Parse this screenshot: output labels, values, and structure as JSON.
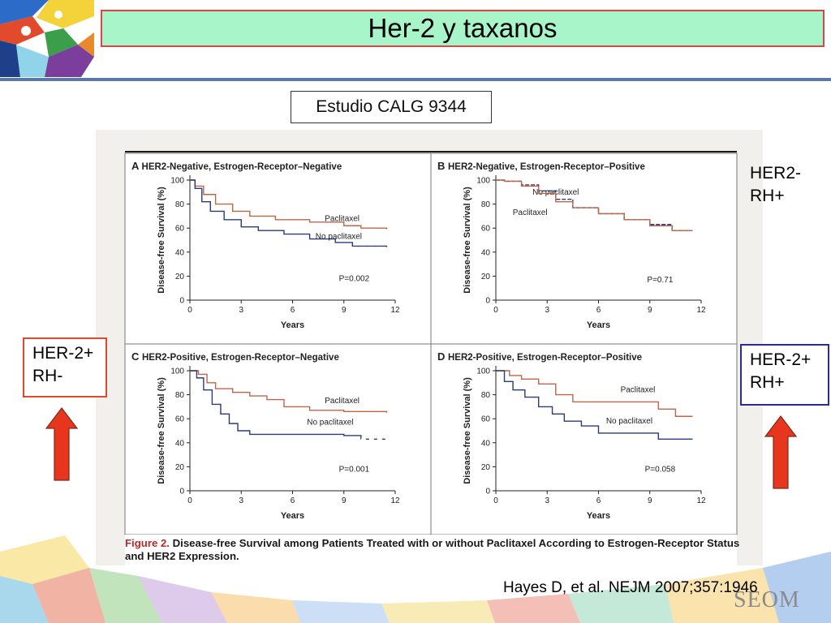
{
  "slide": {
    "title": "Her-2 y taxanos",
    "study_label": "Estudio CALG 9344",
    "citation": "Hayes D, et al. NEJM 2007;357:1946",
    "watermark": "SEOM",
    "side_labels": {
      "her2neg_rhpos": [
        "HER2-",
        "RH+"
      ],
      "her2pos_rhneg": [
        "HER-2+",
        "RH-"
      ],
      "her2pos_rhpos": [
        "HER-2+",
        "RH+"
      ]
    },
    "figure_caption": {
      "label": "Figure 2.",
      "text": "Disease-free Survival among Patients Treated with or without Paclitaxel According to Estrogen-Receptor Status and HER2 Expression."
    },
    "colors": {
      "title_bg": "#a7f5c8",
      "title_border": "#d8464a",
      "arrow": "#e8361e",
      "paclitaxel_line": "#c0654a",
      "no_paclitaxel_line": "#2a3b7a"
    }
  },
  "chart_data": [
    {
      "type": "line",
      "panel_letter": "A",
      "title": "HER2-Negative, Estrogen-Receptor–Negative",
      "xlabel": "Years",
      "ylabel": "Disease-free Survival (%)",
      "xlim": [
        0,
        12
      ],
      "ylim": [
        0,
        100
      ],
      "xticks": [
        0,
        3,
        6,
        9,
        12
      ],
      "yticks": [
        0,
        20,
        40,
        60,
        80,
        100
      ],
      "p_value": "P=0.002",
      "series": [
        {
          "name": "Paclitaxel",
          "x": [
            0,
            0.3,
            0.8,
            1.5,
            2.5,
            3.5,
            5,
            7,
            9,
            10,
            11.5
          ],
          "y": [
            100,
            95,
            88,
            80,
            74,
            70,
            67,
            65,
            62,
            60,
            59
          ]
        },
        {
          "name": "No paclitaxel",
          "x": [
            0,
            0.3,
            0.7,
            1.2,
            2,
            3,
            4,
            5.5,
            7,
            8.5,
            9.5,
            11.5
          ],
          "y": [
            100,
            93,
            82,
            74,
            67,
            61,
            58,
            55,
            51,
            48,
            45,
            44
          ]
        }
      ]
    },
    {
      "type": "line",
      "panel_letter": "B",
      "title": "HER2-Negative, Estrogen-Receptor–Positive",
      "xlabel": "Years",
      "ylabel": "Disease-free Survival (%)",
      "xlim": [
        0,
        12
      ],
      "ylim": [
        0,
        100
      ],
      "xticks": [
        0,
        3,
        6,
        9,
        12
      ],
      "yticks": [
        0,
        20,
        40,
        60,
        80,
        100
      ],
      "p_value": "P=0.71",
      "series": [
        {
          "name": "No paclitaxel",
          "x": [
            0,
            0.5,
            1.5,
            2.5,
            3.5,
            4.5,
            6,
            7.5,
            9,
            10.3,
            11.5
          ],
          "y": [
            100,
            99,
            96,
            91,
            84,
            77,
            72,
            67,
            63,
            58,
            58
          ]
        },
        {
          "name": "Paclitaxel",
          "x": [
            0,
            0.5,
            1.5,
            2.5,
            3.5,
            4.5,
            6,
            7.5,
            9,
            10.3,
            11.5
          ],
          "y": [
            100,
            99,
            95,
            89,
            82,
            77,
            72,
            67,
            62,
            58,
            58
          ]
        }
      ]
    },
    {
      "type": "line",
      "panel_letter": "C",
      "title": "HER2-Positive, Estrogen-Receptor–Negative",
      "xlabel": "Years",
      "ylabel": "Disease-free Survival (%)",
      "xlim": [
        0,
        12
      ],
      "ylim": [
        0,
        100
      ],
      "xticks": [
        0,
        3,
        6,
        9,
        12
      ],
      "yticks": [
        0,
        20,
        40,
        60,
        80,
        100
      ],
      "p_value": "P=0.001",
      "series": [
        {
          "name": "Paclitaxel",
          "x": [
            0,
            0.5,
            1,
            1.5,
            2.5,
            3.5,
            4.5,
            5.5,
            7,
            9,
            11.5
          ],
          "y": [
            100,
            97,
            90,
            85,
            82,
            79,
            76,
            70,
            67,
            66,
            65
          ]
        },
        {
          "name": "No paclitaxel",
          "x": [
            0,
            0.4,
            0.8,
            1.3,
            1.8,
            2.3,
            2.8,
            3.5,
            5,
            7,
            9,
            10,
            11.5
          ],
          "y": [
            100,
            94,
            84,
            72,
            64,
            56,
            50,
            47,
            47,
            47,
            46,
            43,
            43
          ]
        }
      ]
    },
    {
      "type": "line",
      "panel_letter": "D",
      "title": "HER2-Positive, Estrogen-Receptor–Positive",
      "xlabel": "Years",
      "ylabel": "Disease-free Survival (%)",
      "xlim": [
        0,
        12
      ],
      "ylim": [
        0,
        100
      ],
      "xticks": [
        0,
        3,
        6,
        9,
        12
      ],
      "yticks": [
        0,
        20,
        40,
        60,
        80,
        100
      ],
      "p_value": "P=0.058",
      "series": [
        {
          "name": "Paclitaxel",
          "x": [
            0,
            0.8,
            1.5,
            2.5,
            3.5,
            4.5,
            6,
            8,
            9.5,
            10.5,
            11.5
          ],
          "y": [
            100,
            96,
            93,
            89,
            80,
            74,
            74,
            74,
            68,
            62,
            62
          ]
        },
        {
          "name": "No paclitaxel",
          "x": [
            0,
            0.5,
            1,
            1.7,
            2.5,
            3.3,
            4,
            5,
            6,
            7.5,
            9,
            9.5,
            11.5
          ],
          "y": [
            100,
            91,
            84,
            78,
            70,
            64,
            58,
            54,
            48,
            48,
            48,
            43,
            43
          ]
        }
      ]
    }
  ]
}
